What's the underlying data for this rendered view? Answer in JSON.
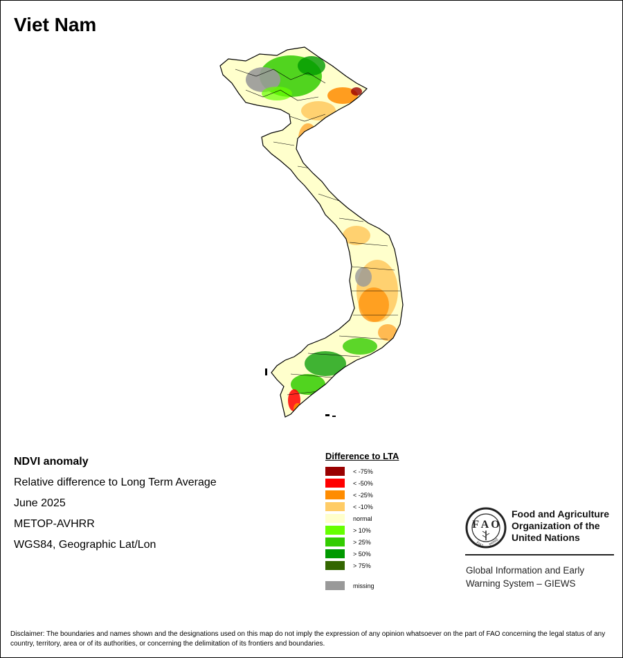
{
  "title": "Viet Nam",
  "info": {
    "product": "NDVI anomaly",
    "description": "Relative difference to Long Term Average",
    "period": "June 2025",
    "sensor": "METOP-AVHRR",
    "projection": "WGS84, Geographic Lat/Lon"
  },
  "legend": {
    "title": "Difference to LTA",
    "items": [
      {
        "label": "< -75%",
        "color": "#990000"
      },
      {
        "label": "< -50%",
        "color": "#ff0000"
      },
      {
        "label": "< -25%",
        "color": "#ff8c00"
      },
      {
        "label": "< -10%",
        "color": "#ffcc66"
      },
      {
        "label": "normal",
        "color": "#ffffcc"
      },
      {
        "label": "> 10%",
        "color": "#66ff00"
      },
      {
        "label": "> 25%",
        "color": "#33cc00"
      },
      {
        "label": "> 50%",
        "color": "#009900"
      },
      {
        "label": "> 75%",
        "color": "#336600"
      }
    ],
    "missing": {
      "label": "missing",
      "color": "#999999"
    }
  },
  "org": {
    "name_lines": [
      "Food and Agriculture",
      "Organization of the",
      "United Nations"
    ],
    "system_lines": [
      "Global Information and Early",
      "Warning System – GIEWS"
    ],
    "logo_text": "FIAT PANIS"
  },
  "disclaimer": "Disclaimer: The boundaries and names shown and the designations used on this map do not imply the expression of any opinion whatsoever on the part of FAO concerning the legal status of any country, territory, area or of its authorities, or concerning the delimitation of its frontiers and boundaries."
}
